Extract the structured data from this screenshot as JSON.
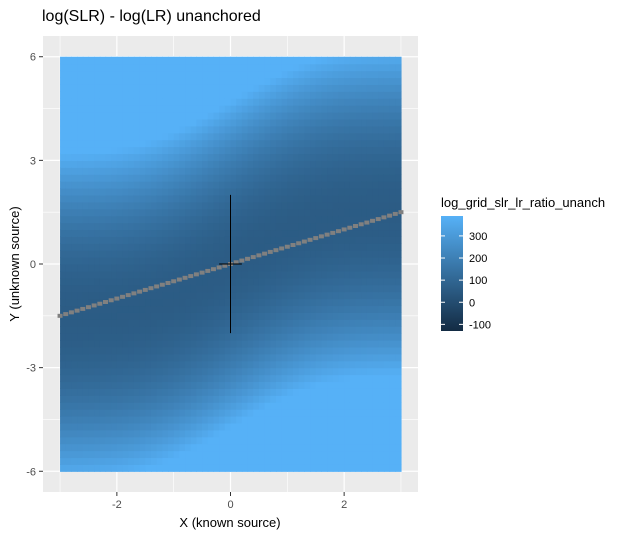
{
  "chart_data": {
    "type": "heatmap",
    "title": "log(SLR) - log(LR) unanchored",
    "xlabel": "X (known source)",
    "ylabel": "Y (unknown source)",
    "xlim": [
      -3.3,
      3.3
    ],
    "ylim": [
      -6.6,
      6.6
    ],
    "grid_x": [
      -3,
      3
    ],
    "grid_y": [
      -6,
      6
    ],
    "x_ticks": [
      -2,
      0,
      2
    ],
    "x_tick_labels": [
      "-2",
      "0",
      "2"
    ],
    "y_ticks": [
      -6,
      -3,
      0,
      3,
      6
    ],
    "y_tick_labels": [
      "-6",
      "-3",
      "0",
      "3",
      "6"
    ],
    "grid": true,
    "value_model": "z ≈ 60 + 300·((y − x/2 − 0.45·sin(πx/3)) / 4.5)²",
    "zero_contour": "y ≈ x/2 (shown as grey NA cells along the diagonal)",
    "na_color": "#808080",
    "legend": {
      "title": "log_grid_slr_lr_ratio_unanch",
      "position": "right",
      "min": -130,
      "max": 390,
      "breaks": [
        300,
        200,
        100,
        0,
        -100
      ],
      "break_labels": [
        "300",
        "200",
        "100",
        "0",
        "-100"
      ],
      "low_color": "#132B43",
      "high_color": "#56B1F7"
    },
    "annotations": {
      "crosshair": {
        "x": 0,
        "y": 0,
        "vertical_extent": [
          -2,
          2
        ],
        "horizontal_extent": [
          -0.2,
          0.2
        ],
        "color": "#000000"
      }
    }
  }
}
